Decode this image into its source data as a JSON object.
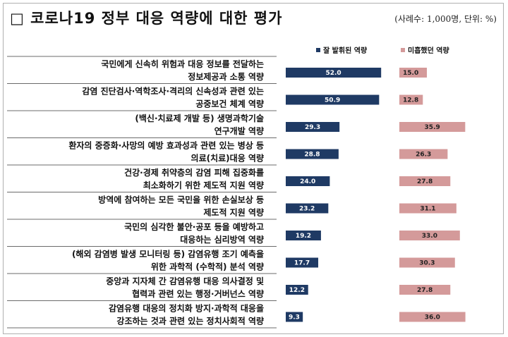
{
  "title": "□ 코로나19 정부 대응 역량에 대한 평가",
  "subtitle": "(사례수: 1,000명, 단위: %)",
  "colors": {
    "series1": "#1f3a64",
    "series2": "#d49a9a",
    "rule": "#6b6b6b"
  },
  "chart_data": {
    "type": "bar",
    "orientation": "horizontal",
    "categories": [
      [
        "국민에게 신속히 위험과 대응 정보를 전달하는",
        "정보제공과 소통 역량"
      ],
      [
        "감염 진단검사·역학조사·격리의 신속성과 관련 있는",
        "공중보건 체계 역량"
      ],
      [
        "(백신·치료제 개발 등) 생명과학기술",
        "연구개발 역량"
      ],
      [
        "환자의 중증화·사망의 예방 효과성과 관련 있는 병상 등",
        "의료(치료)대응 역량"
      ],
      [
        "건강·경제 취약층의 감염 피해 집중화를",
        "최소화하기 위한 제도적 지원 역량"
      ],
      [
        "방역에 참여하는 모든 국민을 위한 손실보상 등",
        "제도적 지원 역량"
      ],
      [
        "국민의 심각한 불안·공포 등을 예방하고",
        "대응하는 심리방역 역량"
      ],
      [
        "(해외 감염병 발생 모니터링 등) 감염유행 조기 예측을",
        "위한 과학적 (수학적) 분석 역량"
      ],
      [
        "중앙과 지자체 간 감염유행 대응 의사결정 및",
        "협력과 관련 있는 행정·거버넌스 역량"
      ],
      [
        "감염유행 대응의 정치화 방지·과학적 대응을",
        "강조하는 것과 관련 있는 정치사회적 역량"
      ]
    ],
    "series": [
      {
        "name": "잘 발휘된 역량",
        "values": [
          52.0,
          50.9,
          29.3,
          28.8,
          24.0,
          23.2,
          19.2,
          17.7,
          12.2,
          9.3
        ]
      },
      {
        "name": "미흡했던 역량",
        "values": [
          15.0,
          12.8,
          35.9,
          26.3,
          27.8,
          31.1,
          33.0,
          30.3,
          27.8,
          36.0
        ]
      }
    ],
    "value_labels": [
      [
        "52.0",
        "50.9",
        "29.3",
        "28.8",
        "24.0",
        "23.2",
        "19.2",
        "17.7",
        "12.2",
        "9.3"
      ],
      [
        "15.0",
        "12.8",
        "35.9",
        "26.3",
        "27.8",
        "31.1",
        "33.0",
        "30.3",
        "27.8",
        "36.0"
      ]
    ],
    "xlim": [
      0,
      55
    ],
    "grid": false,
    "legend_position": "top"
  }
}
